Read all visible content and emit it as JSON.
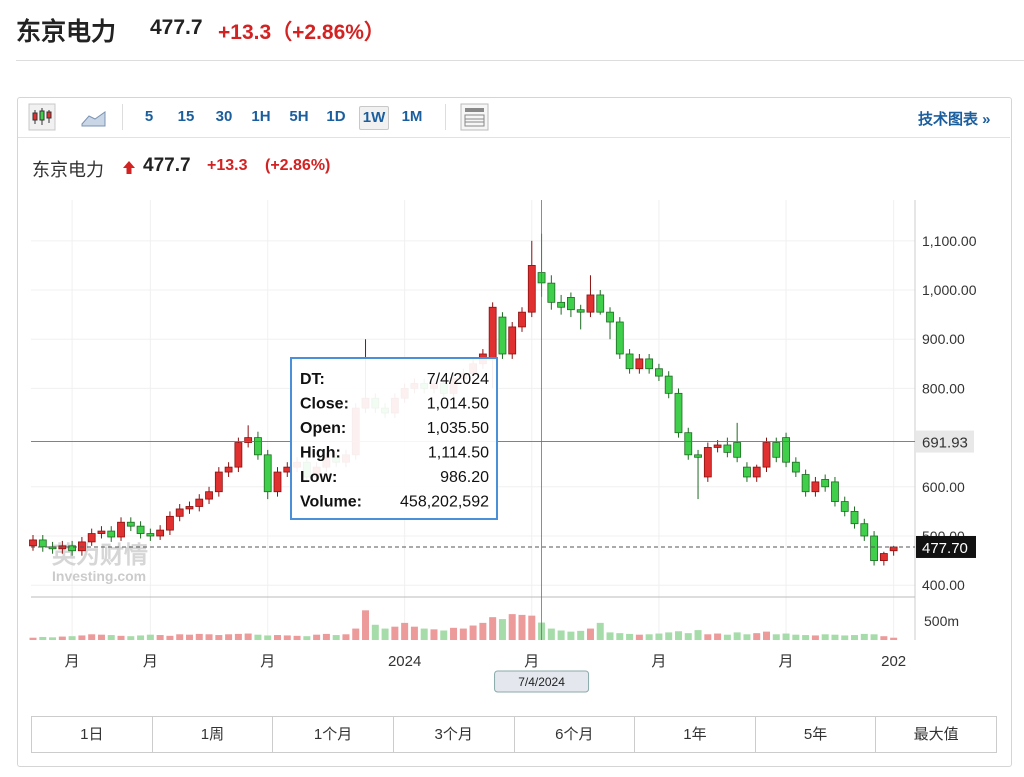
{
  "header": {
    "name": "东京电力",
    "price": "477.7",
    "change": "+13.3（+2.86%）"
  },
  "toolbar": {
    "intervals": [
      "5",
      "15",
      "30",
      "1H",
      "5H",
      "1D",
      "1W",
      "1M"
    ],
    "selected": "1W",
    "link": "技术图表 »"
  },
  "title_row": {
    "name": "东京电力",
    "price": "477.7",
    "change": "+13.3",
    "percent": "(+2.86%)"
  },
  "watermark": {
    "cn": "英为财情",
    "en": "Investing.com"
  },
  "tooltip": {
    "rows": [
      [
        "DT:",
        "7/4/2024"
      ],
      [
        "Close:",
        "1,014.50"
      ],
      [
        "Open:",
        "1,035.50"
      ],
      [
        "High:",
        "1,114.50"
      ],
      [
        "Low:",
        "986.20"
      ],
      [
        "Volume:",
        "458,202,592"
      ]
    ]
  },
  "ranges": [
    "1日",
    "1周",
    "1个月",
    "3个月",
    "6个月",
    "1年",
    "5年",
    "最大值"
  ],
  "chart_data": {
    "type": "candlestick",
    "categories": [
      null,
      null,
      null,
      null,
      "月",
      null,
      null,
      null,
      null,
      null,
      null,
      null,
      "月",
      null,
      null,
      null,
      null,
      null,
      null,
      null,
      null,
      null,
      null,
      null,
      "月",
      null,
      null,
      null,
      null,
      null,
      null,
      null,
      null,
      null,
      null,
      null,
      null,
      null,
      "2024",
      null,
      null,
      null,
      null,
      null,
      null,
      null,
      null,
      null,
      null,
      null,
      null,
      "月",
      null,
      null,
      null,
      null,
      null,
      null,
      null,
      null,
      null,
      null,
      null,
      null,
      "月",
      null,
      null,
      null,
      null,
      null,
      null,
      null,
      null,
      null,
      null,
      null,
      null,
      "月",
      null,
      null,
      null,
      null,
      null,
      null,
      null,
      null,
      null,
      null,
      "202"
    ],
    "open": [
      480,
      492,
      478,
      474,
      480,
      470,
      488,
      505,
      510,
      498,
      528,
      520,
      505,
      500,
      512,
      540,
      555,
      560,
      575,
      590,
      630,
      640,
      690,
      700,
      665,
      590,
      630,
      640,
      650,
      620,
      640,
      660,
      650,
      665,
      760,
      780,
      760,
      750,
      780,
      800,
      810,
      800,
      810,
      790,
      820,
      830,
      850,
      860,
      945,
      870,
      925,
      955,
      1035.5,
      1014,
      975,
      985,
      960,
      955,
      990,
      955,
      935,
      870,
      840,
      860,
      840,
      825,
      790,
      710,
      665,
      620,
      680,
      685,
      690,
      640,
      620,
      640,
      690,
      700,
      650,
      625,
      590,
      615,
      610,
      570,
      550,
      525,
      500,
      450,
      470
    ],
    "high": [
      502,
      502,
      488,
      490,
      490,
      498,
      515,
      520,
      520,
      538,
      538,
      530,
      515,
      522,
      550,
      565,
      570,
      585,
      600,
      640,
      650,
      700,
      725,
      712,
      675,
      640,
      650,
      660,
      660,
      650,
      670,
      670,
      675,
      770,
      900,
      790,
      770,
      790,
      810,
      820,
      820,
      820,
      820,
      830,
      840,
      860,
      880,
      975,
      955,
      935,
      965,
      1100,
      1114.5,
      1030,
      990,
      995,
      970,
      1030,
      1000,
      965,
      945,
      880,
      870,
      870,
      850,
      835,
      800,
      720,
      675,
      690,
      695,
      700,
      730,
      650,
      645,
      700,
      700,
      710,
      660,
      635,
      620,
      625,
      620,
      580,
      560,
      535,
      510,
      468,
      480
    ],
    "low": [
      470,
      468,
      464,
      464,
      460,
      460,
      480,
      495,
      488,
      490,
      510,
      495,
      490,
      492,
      502,
      530,
      545,
      550,
      565,
      580,
      620,
      630,
      680,
      655,
      575,
      580,
      620,
      630,
      610,
      610,
      630,
      640,
      640,
      655,
      750,
      750,
      740,
      740,
      770,
      790,
      790,
      790,
      780,
      780,
      810,
      820,
      840,
      800,
      860,
      860,
      915,
      945,
      986.2,
      960,
      950,
      945,
      920,
      945,
      950,
      900,
      860,
      830,
      830,
      830,
      815,
      780,
      700,
      655,
      575,
      610,
      670,
      660,
      650,
      610,
      610,
      630,
      650,
      640,
      620,
      580,
      580,
      590,
      560,
      540,
      515,
      490,
      440,
      440,
      460
    ],
    "close": [
      492,
      478,
      474,
      480,
      470,
      488,
      505,
      510,
      498,
      528,
      520,
      505,
      500,
      512,
      540,
      555,
      560,
      575,
      590,
      630,
      640,
      690,
      700,
      665,
      590,
      630,
      640,
      650,
      620,
      640,
      660,
      650,
      665,
      760,
      780,
      760,
      750,
      780,
      800,
      810,
      800,
      810,
      790,
      820,
      830,
      850,
      870,
      965,
      870,
      925,
      955,
      1050,
      1014.5,
      975,
      965,
      960,
      955,
      990,
      955,
      935,
      870,
      840,
      860,
      840,
      825,
      790,
      710,
      665,
      660,
      680,
      685,
      670,
      660,
      620,
      640,
      690,
      660,
      650,
      630,
      590,
      610,
      600,
      570,
      550,
      525,
      500,
      450,
      464.4,
      477.7
    ],
    "volume": [
      60,
      80,
      70,
      90,
      100,
      120,
      150,
      140,
      130,
      110,
      100,
      120,
      140,
      130,
      110,
      150,
      140,
      160,
      150,
      130,
      150,
      160,
      170,
      140,
      120,
      130,
      120,
      110,
      100,
      140,
      160,
      130,
      150,
      300,
      780,
      400,
      300,
      350,
      450,
      350,
      300,
      280,
      250,
      320,
      300,
      380,
      450,
      600,
      550,
      680,
      660,
      640,
      458.202592,
      300,
      250,
      220,
      240,
      300,
      450,
      200,
      180,
      160,
      140,
      150,
      170,
      200,
      230,
      180,
      260,
      150,
      170,
      140,
      200,
      150,
      180,
      220,
      150,
      170,
      140,
      130,
      120,
      150,
      140,
      120,
      130,
      160,
      150,
      100,
      60
    ],
    "up_color": "#e0302f",
    "down_color": "#3fcf4a",
    "ylim": [
      376,
      1183
    ],
    "yticks": [
      {
        "value": 1100,
        "label": "1,100.00"
      },
      {
        "value": 1000,
        "label": "1,000.00"
      },
      {
        "value": 900,
        "label": "900.00"
      },
      {
        "value": 800,
        "label": "800.00"
      },
      {
        "value": 600,
        "label": "600.00"
      },
      {
        "value": 500,
        "label": "500.00"
      },
      {
        "value": 400,
        "label": "400.00"
      }
    ],
    "y2lim": [
      0,
      1130
    ],
    "y2ticks": [
      {
        "value": 500,
        "label": "500m"
      }
    ],
    "crosshair_index": 52,
    "crosshair_date": "7/4/2024",
    "crosshair_price": {
      "value": 691.93,
      "label": "691.93"
    },
    "last_price": {
      "value": 477.7,
      "label": "477.70"
    },
    "grid": true
  }
}
